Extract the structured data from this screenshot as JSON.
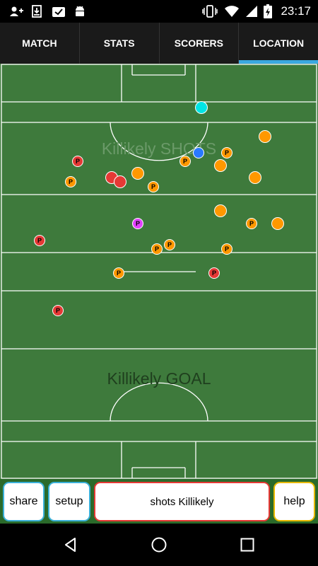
{
  "status_bar": {
    "time": "23:17",
    "icons": [
      "add-person-icon",
      "download-icon",
      "clipboard-check-icon",
      "android-icon",
      "vibrate-icon",
      "wifi-icon",
      "signal-icon",
      "battery-icon"
    ]
  },
  "tabs": [
    {
      "label": "MATCH",
      "active": false
    },
    {
      "label": "STATS",
      "active": false
    },
    {
      "label": "SCORERS",
      "active": false
    },
    {
      "label": "LOCATION",
      "active": true
    }
  ],
  "pitch": {
    "upper_label": "Killikely SHOTS",
    "lower_label": "Killikely GOAL",
    "colors": {
      "grass": "#3e7a3c",
      "line": "#ffffff"
    }
  },
  "markers": [
    {
      "color": "#00e5e5",
      "text": ""
    },
    {
      "color": "#ff9800",
      "text": ""
    },
    {
      "color": "#ff9800",
      "text": "P"
    },
    {
      "color": "#2979ff",
      "text": ""
    },
    {
      "color": "#ff9800",
      "text": "P"
    },
    {
      "color": "#ff9800",
      "text": ""
    },
    {
      "color": "#e53935",
      "text": "P"
    },
    {
      "color": "#ff9800",
      "text": ""
    },
    {
      "color": "#e53935",
      "text": ""
    },
    {
      "color": "#e53935",
      "text": ""
    },
    {
      "color": "#ff9800",
      "text": "P"
    },
    {
      "color": "#ff9800",
      "text": "P"
    },
    {
      "color": "#ff9800",
      "text": ""
    },
    {
      "color": "#ff9800",
      "text": ""
    },
    {
      "color": "#e040fb",
      "text": "P"
    },
    {
      "color": "#ff9800",
      "text": "P"
    },
    {
      "color": "#ff9800",
      "text": ""
    },
    {
      "color": "#e53935",
      "text": "P"
    },
    {
      "color": "#ff9800",
      "text": "P"
    },
    {
      "color": "#ff9800",
      "text": "P"
    },
    {
      "color": "#ff9800",
      "text": "P"
    },
    {
      "color": "#ff9800",
      "text": "P"
    },
    {
      "color": "#e53935",
      "text": "P"
    },
    {
      "color": "#e53935",
      "text": "P"
    }
  ],
  "buttons": {
    "share": {
      "label": "share",
      "border": "#3ab0d8"
    },
    "setup": {
      "label": "setup",
      "border": "#3ab0d8"
    },
    "mode": {
      "label": "shots Killikely",
      "border": "#e53935"
    },
    "help": {
      "label": "help",
      "border": "#e6b800"
    }
  },
  "nav": {
    "icons": [
      "back-icon",
      "home-icon",
      "recents-icon"
    ]
  }
}
